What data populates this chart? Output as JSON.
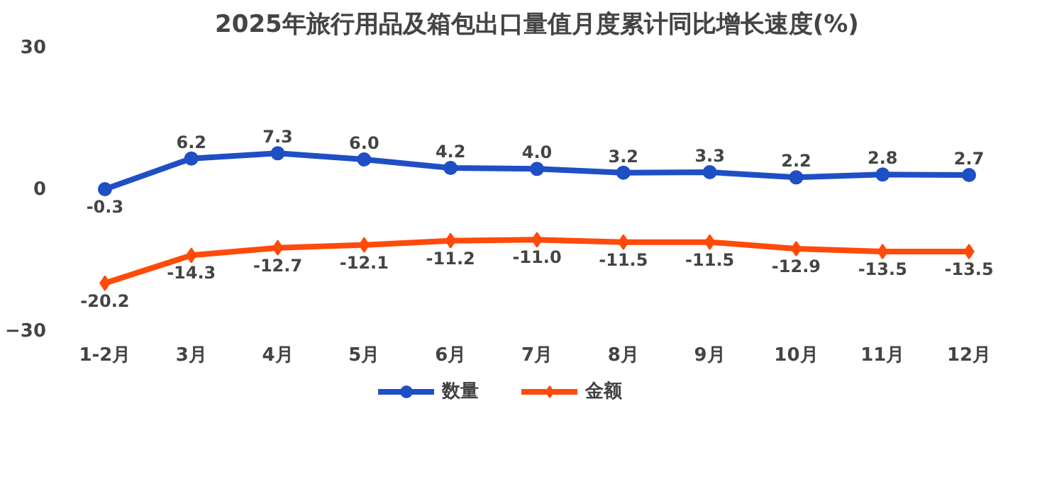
{
  "chart_data": {
    "type": "line",
    "title": "2025年旅行用品及箱包出口量值月度累计同比增长速度(%)",
    "categories": [
      "1-2月",
      "3月",
      "4月",
      "5月",
      "6月",
      "7月",
      "8月",
      "9月",
      "10月",
      "11月",
      "12月"
    ],
    "series": [
      {
        "name": "数量",
        "color": "#1f4fc4",
        "marker": "circle",
        "values": [
          -0.3,
          6.2,
          7.3,
          6.0,
          4.2,
          4.0,
          3.2,
          3.3,
          2.2,
          2.8,
          2.7
        ],
        "value_labels": [
          "-0.3",
          "6.2",
          "7.3",
          "6.0",
          "4.2",
          "4.0",
          "3.2",
          "3.3",
          "2.2",
          "2.8",
          "2.7"
        ]
      },
      {
        "name": "金额",
        "color": "#ff4a0a",
        "marker": "diamond",
        "values": [
          -20.2,
          -14.3,
          -12.7,
          -12.1,
          -11.2,
          -11.0,
          -11.5,
          -11.5,
          -12.9,
          -13.5,
          -13.5
        ],
        "value_labels": [
          "-20.2",
          "-14.3",
          "-12.7",
          "-12.1",
          "-11.2",
          "-11.0",
          "-11.5",
          "-11.5",
          "-12.9",
          "-13.5",
          "-13.5"
        ]
      }
    ],
    "ylim": [
      -30,
      30
    ],
    "yticks": [
      -30,
      0,
      30
    ],
    "legend": "bottom",
    "grid": false,
    "line_style": "solid"
  }
}
